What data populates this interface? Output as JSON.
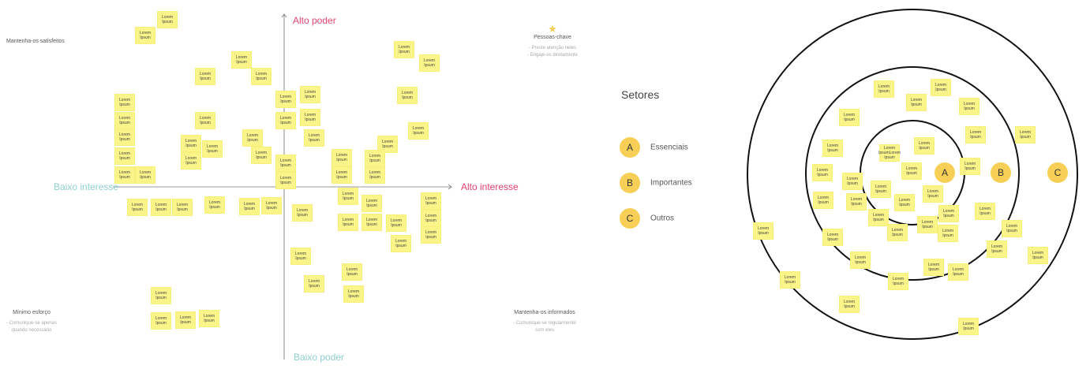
{
  "matrix": {
    "axes": {
      "top": "Alto poder",
      "bottom": "Baixo poder",
      "left": "Baixo interesse",
      "right": "Alto interesse",
      "high_color": "#e0436e",
      "low_color": "#8ecfd0"
    },
    "quadrants": {
      "top_left": {
        "title": "Mantenha-os satisfeitos"
      },
      "top_right": {
        "title": "Pessoas-chave",
        "icon": "star-icon",
        "lines": [
          "- Preste atenção neles",
          "- Engaje-os diretamente"
        ]
      },
      "bottom_left": {
        "title": "Mínimo esforço",
        "lines": [
          "- Comunique-se apenas",
          "quando necessário"
        ]
      },
      "bottom_right": {
        "title": "Mantenha-os informados",
        "lines": [
          "- Comunique-se regularmente",
          "com eles"
        ]
      }
    },
    "note_label": "Lorem Ipsum"
  },
  "sectors": {
    "title": "Setores",
    "items": [
      {
        "badge": "A",
        "label": "Essenciais"
      },
      {
        "badge": "B",
        "label": "Importantes"
      },
      {
        "badge": "C",
        "label": "Outros"
      }
    ],
    "badge_color": "#f7cf57",
    "note_label": "Lorem Ipsum",
    "special_note_label": "Lorem IpsumLorem Ipsum"
  }
}
